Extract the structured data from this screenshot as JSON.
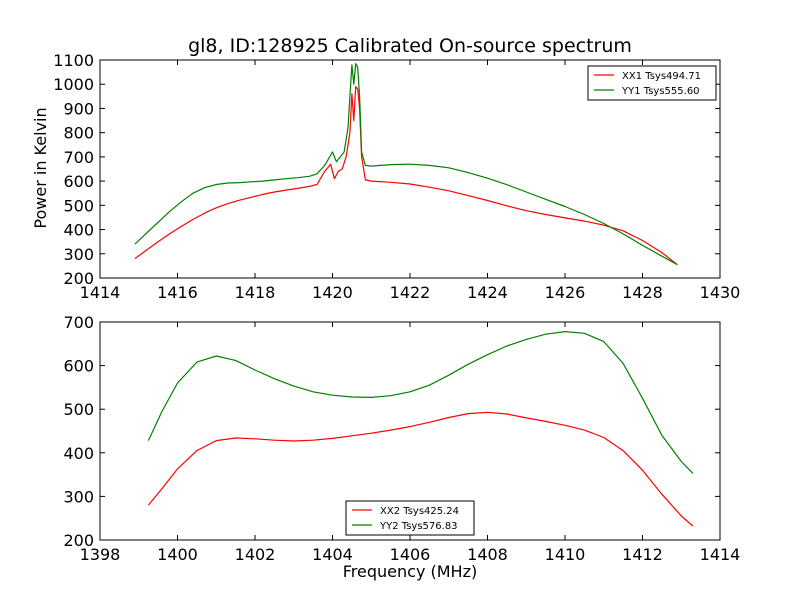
{
  "figure": {
    "title": "gl8, ID:128925 Calibrated On-source spectrum",
    "xlabel": "Frequency (MHz)",
    "ylabel": "Power in Kelvin"
  },
  "chart_data": [
    {
      "type": "line",
      "title": "gl8, ID:128925 Calibrated On-source spectrum",
      "xlabel": "",
      "ylabel": "Power in Kelvin",
      "xlim": [
        1414,
        1430
      ],
      "ylim": [
        200,
        1100
      ],
      "xticks": [
        1414,
        1416,
        1418,
        1420,
        1422,
        1424,
        1426,
        1428,
        1430
      ],
      "yticks": [
        200,
        300,
        400,
        500,
        600,
        700,
        800,
        900,
        1000,
        1100
      ],
      "grid": false,
      "legend": "top-right",
      "series": [
        {
          "name": "XX1 Tsys494.71",
          "color": "#ff0000",
          "x": [
            1414.9,
            1415.2,
            1415.5,
            1415.8,
            1416.1,
            1416.4,
            1416.7,
            1417.0,
            1417.3,
            1417.6,
            1417.9,
            1418.2,
            1418.5,
            1418.8,
            1419.1,
            1419.4,
            1419.6,
            1419.8,
            1419.95,
            1420.05,
            1420.15,
            1420.25,
            1420.35,
            1420.45,
            1420.5,
            1420.55,
            1420.6,
            1420.65,
            1420.7,
            1420.75,
            1420.85,
            1421.0,
            1421.5,
            1422.0,
            1422.5,
            1423.0,
            1423.5,
            1424.0,
            1424.5,
            1425.0,
            1425.5,
            1426.0,
            1426.5,
            1427.0,
            1427.5,
            1428.0,
            1428.5,
            1428.9
          ],
          "y": [
            280,
            315,
            350,
            383,
            413,
            442,
            468,
            490,
            507,
            521,
            533,
            545,
            555,
            563,
            570,
            578,
            586,
            640,
            670,
            610,
            640,
            650,
            700,
            800,
            960,
            850,
            990,
            980,
            900,
            700,
            605,
            600,
            595,
            588,
            575,
            560,
            540,
            520,
            498,
            478,
            462,
            448,
            435,
            418,
            395,
            355,
            305,
            255
          ]
        },
        {
          "name": "YY1 Tsys555.60",
          "color": "#008000",
          "x": [
            1414.9,
            1415.2,
            1415.5,
            1415.8,
            1416.1,
            1416.4,
            1416.7,
            1417.0,
            1417.3,
            1417.6,
            1417.9,
            1418.2,
            1418.5,
            1418.8,
            1419.1,
            1419.4,
            1419.6,
            1419.8,
            1420.0,
            1420.1,
            1420.2,
            1420.3,
            1420.4,
            1420.45,
            1420.5,
            1420.55,
            1420.6,
            1420.65,
            1420.7,
            1420.75,
            1420.85,
            1421.0,
            1421.5,
            1422.0,
            1422.5,
            1423.0,
            1423.5,
            1424.0,
            1424.5,
            1425.0,
            1425.5,
            1426.0,
            1426.5,
            1427.0,
            1427.5,
            1428.0,
            1428.5,
            1428.9
          ],
          "y": [
            340,
            385,
            430,
            475,
            515,
            550,
            573,
            586,
            592,
            594,
            597,
            600,
            605,
            610,
            614,
            620,
            630,
            665,
            720,
            680,
            700,
            720,
            820,
            950,
            1080,
            1000,
            1085,
            1070,
            950,
            720,
            665,
            662,
            668,
            670,
            665,
            655,
            635,
            612,
            585,
            555,
            525,
            495,
            462,
            425,
            382,
            335,
            290,
            255
          ]
        }
      ]
    },
    {
      "type": "line",
      "title": "",
      "xlabel": "Frequency (MHz)",
      "ylabel": "",
      "xlim": [
        1398,
        1414
      ],
      "ylim": [
        200,
        700
      ],
      "xticks": [
        1398,
        1400,
        1402,
        1404,
        1406,
        1408,
        1410,
        1412,
        1414
      ],
      "yticks": [
        200,
        300,
        400,
        500,
        600,
        700
      ],
      "grid": false,
      "legend": "bottom-center",
      "series": [
        {
          "name": "XX2 Tsys425.24",
          "color": "#ff0000",
          "x": [
            1399.25,
            1399.6,
            1400.0,
            1400.5,
            1401.0,
            1401.5,
            1402.0,
            1402.5,
            1403.0,
            1403.5,
            1404.0,
            1404.5,
            1405.0,
            1405.5,
            1406.0,
            1406.5,
            1407.0,
            1407.5,
            1408.0,
            1408.5,
            1409.0,
            1409.5,
            1410.0,
            1410.5,
            1411.0,
            1411.5,
            1412.0,
            1412.5,
            1413.0,
            1413.3
          ],
          "y": [
            280,
            318,
            363,
            405,
            428,
            434,
            432,
            429,
            427,
            429,
            433,
            439,
            445,
            452,
            460,
            470,
            481,
            490,
            493,
            489,
            480,
            472,
            463,
            452,
            435,
            405,
            360,
            305,
            255,
            232
          ]
        },
        {
          "name": "YY2 Tsys576.83",
          "color": "#008000",
          "x": [
            1399.25,
            1399.6,
            1400.0,
            1400.5,
            1401.0,
            1401.5,
            1402.0,
            1402.5,
            1403.0,
            1403.5,
            1404.0,
            1404.5,
            1405.0,
            1405.5,
            1406.0,
            1406.5,
            1407.0,
            1407.5,
            1408.0,
            1408.5,
            1409.0,
            1409.5,
            1410.0,
            1410.5,
            1411.0,
            1411.5,
            1412.0,
            1412.5,
            1413.0,
            1413.3
          ],
          "y": [
            428,
            495,
            560,
            608,
            622,
            612,
            590,
            570,
            553,
            540,
            532,
            528,
            527,
            531,
            540,
            555,
            578,
            603,
            625,
            645,
            660,
            672,
            678,
            674,
            655,
            605,
            525,
            440,
            380,
            353
          ]
        }
      ]
    }
  ]
}
